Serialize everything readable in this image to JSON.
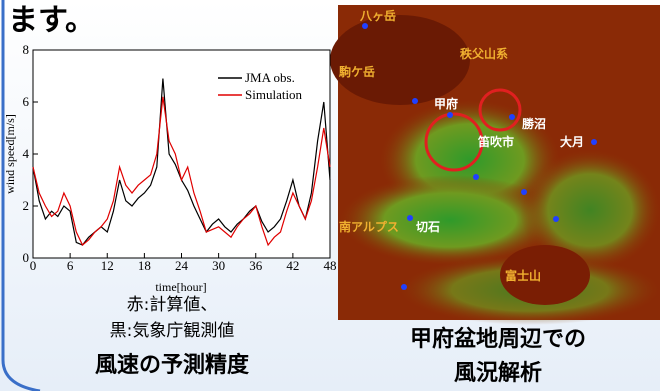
{
  "slide": {
    "heading": "ます。",
    "left_caption": [
      "赤:計算値、",
      "黒:気象庁観測値"
    ],
    "left_title": "風速の予測精度",
    "right_caption": "甲府盆地周辺での",
    "right_title": "風況解析"
  },
  "map": {
    "labels": [
      "八ヶ岳",
      "秩父山系",
      "駒ケ岳",
      "甲府",
      "勝沼",
      "笛吹市",
      "大月",
      "南アルプス",
      "切石",
      "富士山"
    ]
  },
  "chart_data": {
    "type": "line",
    "xlabel": "time[hour]",
    "ylabel": "wind speed[m/s]",
    "x": [
      0,
      1,
      2,
      3,
      4,
      5,
      6,
      7,
      8,
      9,
      10,
      11,
      12,
      13,
      14,
      15,
      16,
      17,
      18,
      19,
      20,
      21,
      22,
      23,
      24,
      25,
      26,
      27,
      28,
      29,
      30,
      31,
      32,
      33,
      34,
      35,
      36,
      37,
      38,
      39,
      40,
      41,
      42,
      43,
      44,
      45,
      46,
      47,
      48
    ],
    "series": [
      {
        "name": "JMA obs.",
        "color": "#000000",
        "values": [
          3.5,
          2.2,
          1.5,
          1.8,
          1.6,
          2.0,
          1.8,
          0.6,
          0.5,
          0.8,
          1.0,
          1.2,
          1.0,
          1.8,
          3.0,
          2.2,
          2.0,
          2.3,
          2.5,
          2.8,
          3.5,
          6.9,
          4.0,
          3.6,
          3.0,
          2.6,
          2.0,
          1.5,
          1.0,
          1.3,
          1.5,
          1.2,
          1.0,
          1.3,
          1.5,
          1.8,
          2.0,
          1.4,
          1.0,
          1.2,
          1.5,
          2.2,
          3.0,
          2.0,
          1.5,
          2.5,
          4.5,
          6.0,
          3.0
        ]
      },
      {
        "name": "Simulation",
        "color": "#e00000",
        "values": [
          3.5,
          2.5,
          2.0,
          1.6,
          1.8,
          2.5,
          2.0,
          1.0,
          0.5,
          0.7,
          1.0,
          1.2,
          1.5,
          2.2,
          3.5,
          2.8,
          2.5,
          2.8,
          3.0,
          3.2,
          4.0,
          6.2,
          4.5,
          4.0,
          3.0,
          3.5,
          2.5,
          1.8,
          1.0,
          1.1,
          1.2,
          1.0,
          0.8,
          1.2,
          1.5,
          1.7,
          2.0,
          1.2,
          0.5,
          0.8,
          1.0,
          1.8,
          2.5,
          2.0,
          1.5,
          2.2,
          3.5,
          5.0,
          3.5
        ]
      }
    ],
    "xlim": [
      0,
      48
    ],
    "xticks": [
      0,
      6,
      12,
      18,
      24,
      30,
      36,
      42,
      48
    ],
    "ylim": [
      0,
      8
    ],
    "yticks": [
      0,
      2,
      4,
      6,
      8
    ],
    "legend": "upper-right",
    "grid": false
  }
}
